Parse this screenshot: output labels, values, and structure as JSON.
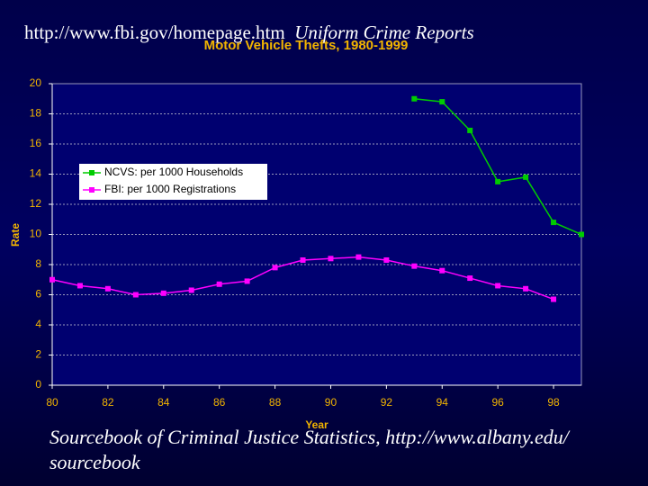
{
  "header": {
    "url": "http://www.fbi.gov/homepage.htm",
    "source": "Uniform Crime Reports"
  },
  "footer": "Sourcebook of Criminal Justice Statistics, http://www.albany.edu/ sourcebook",
  "chart_data": {
    "type": "line",
    "title": "Motor Vehicle Thefts, 1980-1999",
    "x_label": "Year",
    "y_label": "Rate",
    "x": [
      80,
      81,
      82,
      83,
      84,
      85,
      86,
      87,
      88,
      89,
      90,
      91,
      92,
      93,
      94,
      95,
      96,
      97,
      98,
      99
    ],
    "series": [
      {
        "name": "NCVS: per 1000 Households",
        "color": "#00cc00",
        "values": [
          null,
          null,
          null,
          null,
          null,
          null,
          null,
          null,
          null,
          null,
          null,
          null,
          null,
          19.0,
          18.8,
          16.9,
          13.5,
          13.8,
          10.8,
          10.0
        ]
      },
      {
        "name": "FBI: per 1000 Registrations",
        "color": "#ff00ff",
        "values": [
          7.0,
          6.6,
          6.4,
          6.0,
          6.1,
          6.3,
          6.7,
          6.9,
          7.8,
          8.3,
          8.4,
          8.5,
          8.3,
          7.9,
          7.6,
          7.1,
          6.6,
          6.4,
          5.7,
          null
        ]
      }
    ],
    "xlim": [
      80,
      99
    ],
    "xticks": [
      80,
      82,
      84,
      86,
      88,
      90,
      92,
      94,
      96,
      98
    ],
    "ylim": [
      0,
      20
    ],
    "yticks": [
      0,
      2,
      4,
      6,
      8,
      10,
      12,
      14,
      16,
      18,
      20
    ],
    "grid": true,
    "legend": "upper left"
  }
}
